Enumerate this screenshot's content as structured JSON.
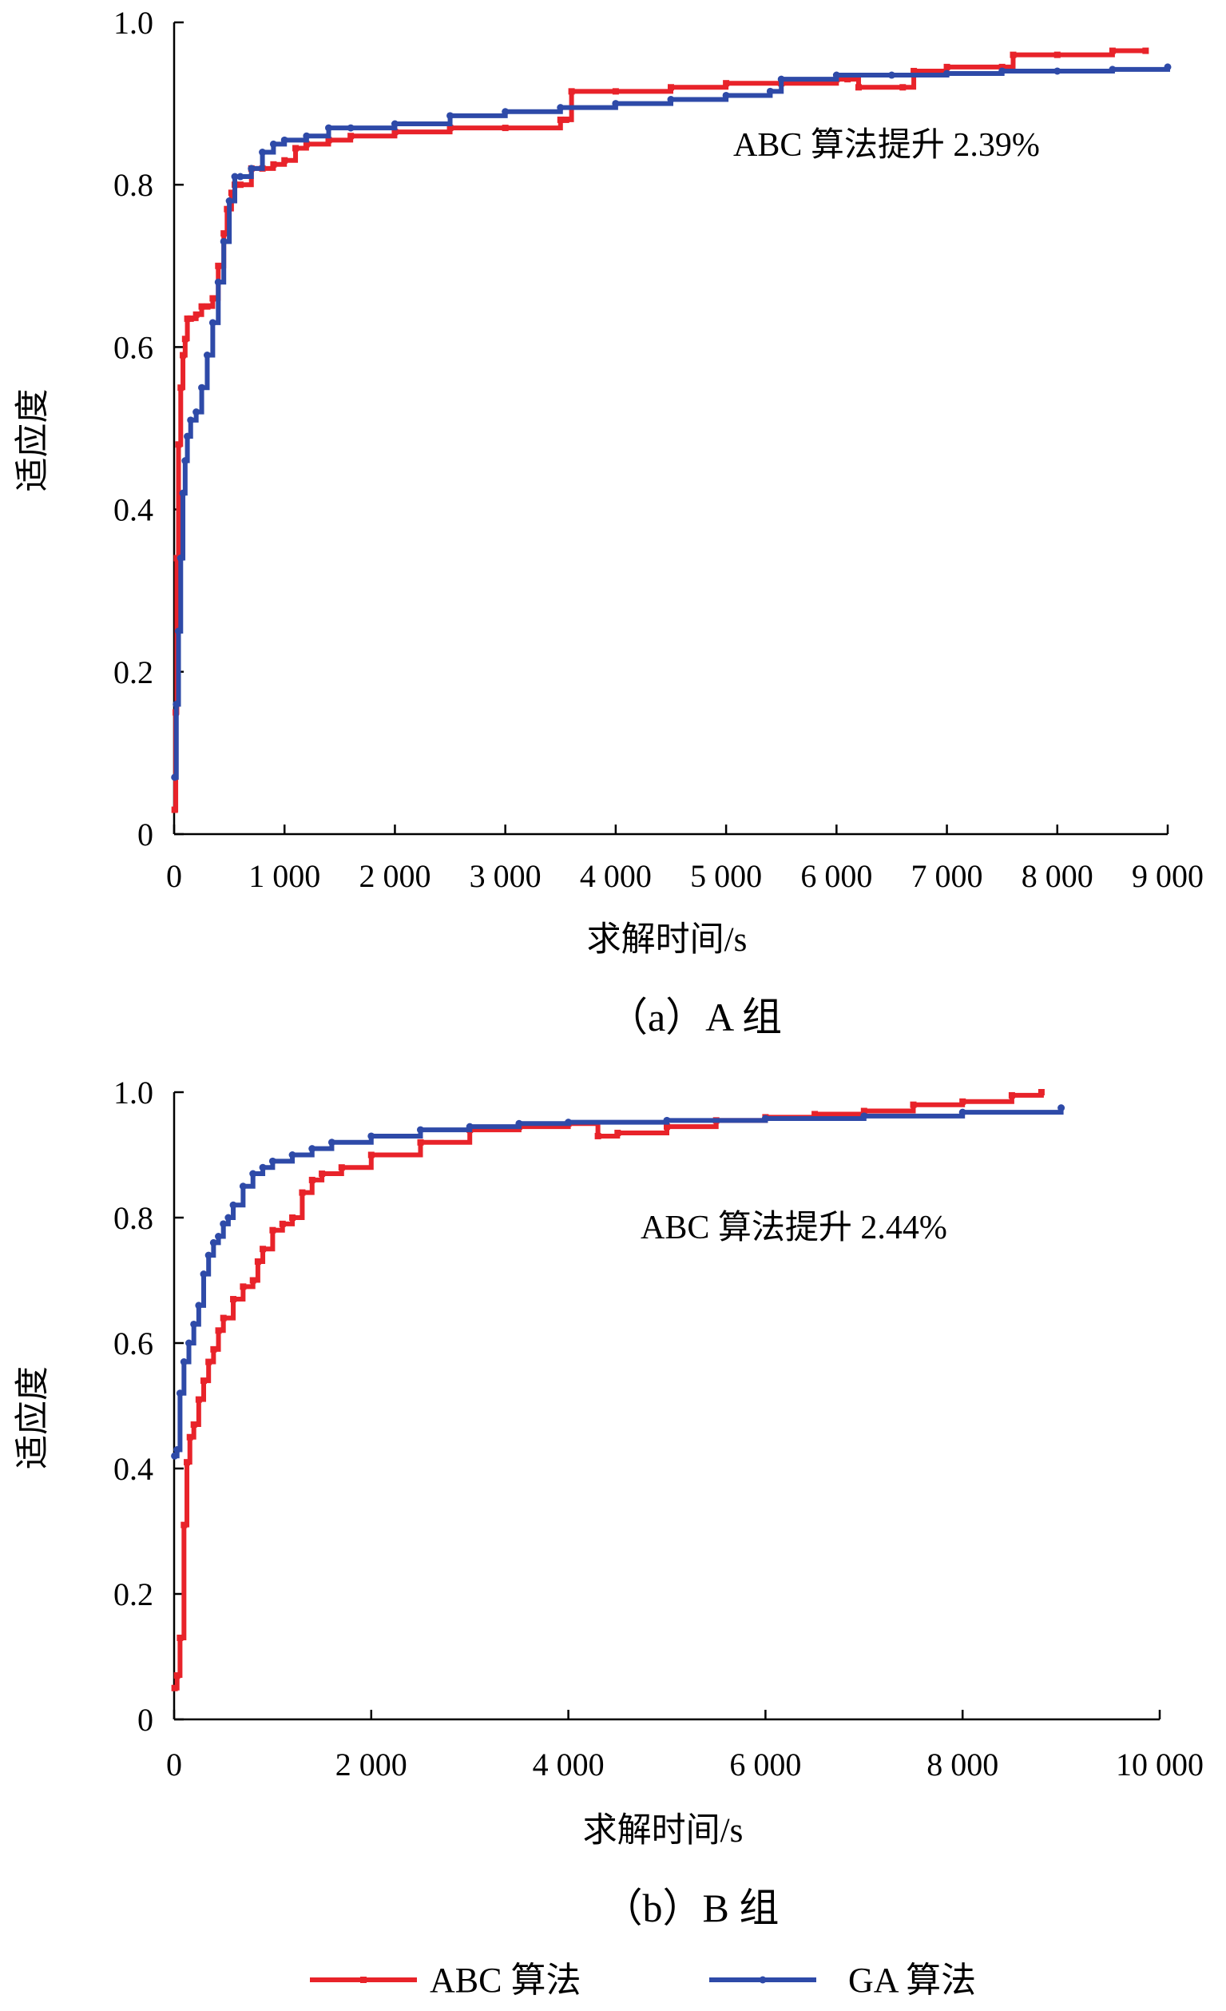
{
  "colors": {
    "abc": "#e8232a",
    "ga": "#2e4aa8",
    "axis": "#000000"
  },
  "legend": [
    {
      "label": "ABC 算法",
      "series": "abc",
      "marker": "square"
    },
    {
      "label": "GA 算法",
      "series": "ga",
      "marker": "circle"
    }
  ],
  "chart_data": [
    {
      "type": "line",
      "caption": "（a）A 组",
      "xlabel": "求解时间/s",
      "ylabel": "适应度",
      "annotation": "ABC 算法提升 2.39%",
      "xlim": [
        0,
        9000
      ],
      "ylim": [
        0,
        1.0
      ],
      "xticks": [
        0,
        1000,
        2000,
        3000,
        4000,
        5000,
        6000,
        7000,
        8000,
        9000
      ],
      "xtick_labels": [
        "0",
        "1 000",
        "2 000",
        "3 000",
        "4 000",
        "5 000",
        "6 000",
        "7 000",
        "8 000",
        "9 000"
      ],
      "yticks": [
        0,
        0.2,
        0.4,
        0.6,
        0.8,
        1.0
      ],
      "ytick_labels": [
        "0",
        "0.2",
        "0.4",
        "0.6",
        "0.8",
        "1.0"
      ],
      "grid": false,
      "series": [
        {
          "name": "ABC 算法",
          "key": "abc",
          "x": [
            5,
            15,
            25,
            40,
            60,
            80,
            100,
            120,
            150,
            200,
            250,
            300,
            350,
            400,
            450,
            480,
            520,
            550,
            600,
            700,
            800,
            900,
            1000,
            1100,
            1200,
            1400,
            1600,
            2000,
            2500,
            3000,
            3500,
            3550,
            3600,
            4000,
            4500,
            5000,
            5500,
            6000,
            6100,
            6200,
            6600,
            6700,
            7000,
            7500,
            7600,
            8000,
            8500,
            8800
          ],
          "y": [
            0.03,
            0.15,
            0.34,
            0.48,
            0.55,
            0.59,
            0.61,
            0.635,
            0.635,
            0.64,
            0.65,
            0.65,
            0.66,
            0.7,
            0.74,
            0.77,
            0.79,
            0.8,
            0.8,
            0.82,
            0.82,
            0.825,
            0.83,
            0.845,
            0.85,
            0.855,
            0.86,
            0.865,
            0.87,
            0.87,
            0.88,
            0.88,
            0.915,
            0.915,
            0.92,
            0.925,
            0.925,
            0.93,
            0.93,
            0.92,
            0.92,
            0.94,
            0.945,
            0.945,
            0.96,
            0.96,
            0.965,
            0.965
          ]
        },
        {
          "name": "GA 算法",
          "key": "ga",
          "x": [
            5,
            20,
            40,
            60,
            80,
            100,
            120,
            150,
            200,
            250,
            300,
            350,
            400,
            450,
            500,
            550,
            600,
            700,
            800,
            900,
            1000,
            1200,
            1400,
            1600,
            2000,
            2500,
            3000,
            3500,
            4000,
            4500,
            5000,
            5400,
            5500,
            6000,
            6500,
            7000,
            7500,
            8000,
            8500,
            9000
          ],
          "y": [
            0.07,
            0.16,
            0.25,
            0.34,
            0.42,
            0.46,
            0.49,
            0.51,
            0.52,
            0.55,
            0.59,
            0.63,
            0.68,
            0.73,
            0.78,
            0.81,
            0.81,
            0.82,
            0.84,
            0.85,
            0.855,
            0.86,
            0.87,
            0.87,
            0.875,
            0.885,
            0.89,
            0.895,
            0.9,
            0.905,
            0.91,
            0.915,
            0.93,
            0.935,
            0.935,
            0.937,
            0.94,
            0.94,
            0.942,
            0.945
          ]
        }
      ]
    },
    {
      "type": "line",
      "caption": "（b）B 组",
      "xlabel": "求解时间/s",
      "ylabel": "适应度",
      "annotation": "ABC 算法提升 2.44%",
      "xlim": [
        0,
        10000
      ],
      "ylim": [
        0,
        1.0
      ],
      "xticks": [
        0,
        2000,
        4000,
        6000,
        8000,
        10000
      ],
      "xtick_labels": [
        "0",
        "2 000",
        "4 000",
        "6 000",
        "8 000",
        "10 000"
      ],
      "yticks": [
        0,
        0.2,
        0.4,
        0.6,
        0.8,
        1.0
      ],
      "ytick_labels": [
        "0",
        "0.2",
        "0.4",
        "0.6",
        "0.8",
        "1.0"
      ],
      "grid": false,
      "series": [
        {
          "name": "ABC 算法",
          "key": "abc",
          "x": [
            5,
            30,
            60,
            100,
            130,
            160,
            200,
            250,
            300,
            350,
            400,
            450,
            500,
            600,
            700,
            800,
            850,
            900,
            1000,
            1100,
            1200,
            1300,
            1400,
            1500,
            1700,
            2000,
            2500,
            3000,
            3500,
            4000,
            4300,
            4500,
            5000,
            5500,
            6000,
            6500,
            7000,
            7500,
            8000,
            8500,
            8800
          ],
          "y": [
            0.05,
            0.07,
            0.13,
            0.31,
            0.41,
            0.45,
            0.47,
            0.51,
            0.54,
            0.57,
            0.59,
            0.62,
            0.64,
            0.67,
            0.69,
            0.7,
            0.73,
            0.75,
            0.78,
            0.79,
            0.8,
            0.84,
            0.86,
            0.87,
            0.88,
            0.9,
            0.92,
            0.94,
            0.945,
            0.95,
            0.93,
            0.935,
            0.945,
            0.955,
            0.96,
            0.965,
            0.97,
            0.98,
            0.985,
            0.995,
            1.0
          ]
        },
        {
          "name": "GA 算法",
          "key": "ga",
          "x": [
            5,
            30,
            60,
            100,
            150,
            200,
            250,
            300,
            350,
            400,
            450,
            500,
            550,
            600,
            700,
            800,
            900,
            1000,
            1200,
            1400,
            1600,
            2000,
            2500,
            3000,
            3500,
            4000,
            5000,
            6000,
            7000,
            8000,
            9000
          ],
          "y": [
            0.42,
            0.43,
            0.52,
            0.57,
            0.6,
            0.63,
            0.66,
            0.71,
            0.74,
            0.76,
            0.77,
            0.79,
            0.8,
            0.82,
            0.85,
            0.87,
            0.88,
            0.89,
            0.9,
            0.91,
            0.92,
            0.93,
            0.94,
            0.945,
            0.95,
            0.952,
            0.955,
            0.958,
            0.962,
            0.968,
            0.975
          ]
        }
      ]
    }
  ]
}
